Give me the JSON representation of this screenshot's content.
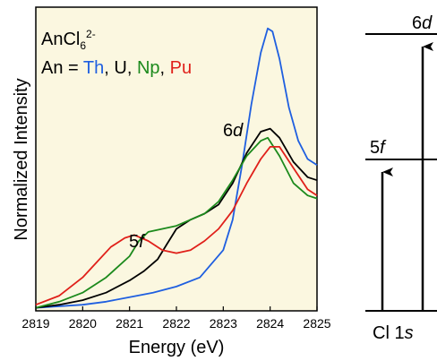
{
  "colors": {
    "plot_bg": "#fbf7e0",
    "Th": "#1f5fe0",
    "U": "#000000",
    "Np": "#1c8a1c",
    "Pu": "#e0201a"
  },
  "legend": {
    "line1": "AnCl",
    "line1_sub": "6",
    "line1_sup": "2-",
    "line2_prefix": "An = ",
    "items": [
      {
        "label": "Th",
        "color": "#1f5fe0"
      },
      {
        "label": "U",
        "color": "#000000"
      },
      {
        "label": "Np",
        "color": "#1c8a1c"
      },
      {
        "label": "Pu",
        "color": "#e0201a"
      }
    ],
    "separator": ", "
  },
  "annotations": {
    "d_peak": {
      "num": "6",
      "it": "d"
    },
    "f_peak": {
      "num": "5",
      "it": "f"
    }
  },
  "diagram": {
    "top_level": {
      "num": "6",
      "it": "d"
    },
    "mid_level": {
      "num": "5",
      "it": "f"
    },
    "bottom_label": {
      "text": "Cl 1",
      "it": "s"
    }
  },
  "chart_data": {
    "type": "line",
    "xlabel": "Energy (eV)",
    "ylabel": "Normalized Intensity",
    "xlim": [
      2819,
      2825
    ],
    "ylim": [
      0,
      1.0
    ],
    "xticks": [
      "2819",
      "2820",
      "2821",
      "2822",
      "2823",
      "2824",
      "2825"
    ],
    "series": [
      {
        "name": "Th",
        "color": "#1f5fe0",
        "x": [
          2819,
          2820,
          2820.5,
          2821,
          2821.5,
          2822,
          2822.5,
          2823,
          2823.2,
          2823.4,
          2823.6,
          2823.8,
          2823.95,
          2824.05,
          2824.2,
          2824.4,
          2824.6,
          2824.8,
          2825
        ],
        "y": [
          0.01,
          0.02,
          0.03,
          0.045,
          0.06,
          0.08,
          0.11,
          0.2,
          0.3,
          0.48,
          0.68,
          0.85,
          0.93,
          0.92,
          0.83,
          0.67,
          0.56,
          0.5,
          0.48
        ]
      },
      {
        "name": "U",
        "color": "#000000",
        "x": [
          2819,
          2819.5,
          2820,
          2820.5,
          2821,
          2821.3,
          2821.6,
          2821.8,
          2822,
          2822.3,
          2822.6,
          2822.9,
          2823.2,
          2823.5,
          2823.8,
          2824.0,
          2824.2,
          2824.5,
          2824.8,
          2825
        ],
        "y": [
          0.01,
          0.02,
          0.035,
          0.06,
          0.1,
          0.13,
          0.17,
          0.22,
          0.27,
          0.3,
          0.32,
          0.35,
          0.42,
          0.52,
          0.59,
          0.6,
          0.57,
          0.49,
          0.44,
          0.43
        ]
      },
      {
        "name": "Np",
        "color": "#1c8a1c",
        "x": [
          2819,
          2819.5,
          2820,
          2820.5,
          2821,
          2821.2,
          2821.4,
          2821.7,
          2822,
          2822.3,
          2822.6,
          2822.9,
          2823.2,
          2823.5,
          2823.8,
          2823.95,
          2824.2,
          2824.5,
          2824.8,
          2825
        ],
        "y": [
          0.01,
          0.03,
          0.06,
          0.11,
          0.18,
          0.23,
          0.26,
          0.27,
          0.28,
          0.3,
          0.32,
          0.36,
          0.43,
          0.51,
          0.56,
          0.57,
          0.51,
          0.42,
          0.38,
          0.37
        ]
      },
      {
        "name": "Pu",
        "color": "#e0201a",
        "x": [
          2819,
          2819.5,
          2820,
          2820.3,
          2820.6,
          2820.9,
          2821.1,
          2821.4,
          2821.7,
          2822,
          2822.3,
          2822.6,
          2822.9,
          2823.2,
          2823.5,
          2823.8,
          2824.0,
          2824.2,
          2824.5,
          2824.8,
          2825
        ],
        "y": [
          0.02,
          0.05,
          0.11,
          0.16,
          0.21,
          0.24,
          0.25,
          0.23,
          0.2,
          0.19,
          0.2,
          0.23,
          0.27,
          0.33,
          0.42,
          0.5,
          0.54,
          0.54,
          0.47,
          0.4,
          0.38
        ]
      }
    ]
  }
}
